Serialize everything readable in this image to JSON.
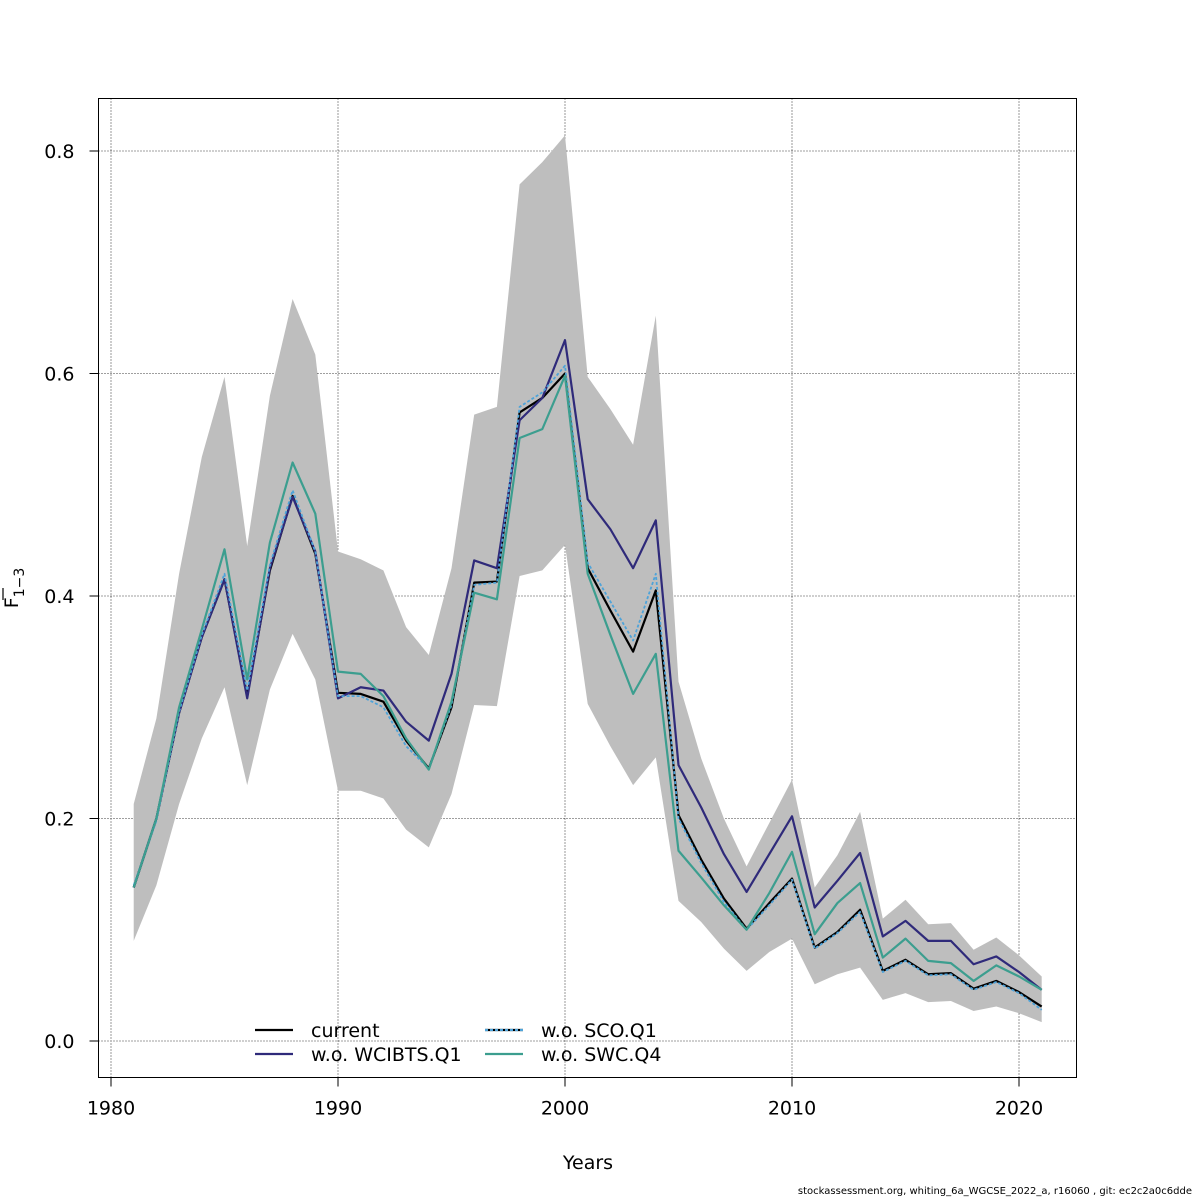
{
  "chart_data": {
    "type": "line",
    "xlabel": "Years",
    "ylabel_main": "F",
    "ylabel_sub": "1−3",
    "xlim": [
      1980,
      2022
    ],
    "ylim": [
      0,
      0.85
    ],
    "xticks": [
      "1980",
      "1990",
      "2000",
      "2010",
      "2020"
    ],
    "yticks": [
      "0.0",
      "0.2",
      "0.4",
      "0.6",
      "0.8"
    ],
    "grid": true,
    "legend_position": "bottom-left",
    "x": [
      1981,
      1982,
      1983,
      1984,
      1985,
      1986,
      1987,
      1988,
      1989,
      1990,
      1991,
      1992,
      1993,
      1994,
      1995,
      1996,
      1997,
      1998,
      1999,
      2000,
      2001,
      2002,
      2003,
      2004,
      2005,
      2006,
      2007,
      2008,
      2009,
      2010,
      2011,
      2012,
      2013,
      2014,
      2015,
      2016,
      2017,
      2018,
      2019,
      2020,
      2021
    ],
    "band": {
      "color": "#bebebe",
      "upper": [
        0.213,
        0.29,
        0.42,
        0.525,
        0.597,
        0.445,
        0.58,
        0.667,
        0.617,
        0.44,
        0.433,
        0.423,
        0.372,
        0.347,
        0.425,
        0.563,
        0.57,
        0.77,
        0.79,
        0.814,
        0.597,
        0.568,
        0.536,
        0.652,
        0.323,
        0.254,
        0.2,
        0.157,
        0.196,
        0.235,
        0.138,
        0.167,
        0.206,
        0.11,
        0.127,
        0.105,
        0.106,
        0.082,
        0.093,
        0.077,
        0.058
      ],
      "lower": [
        0.09,
        0.14,
        0.213,
        0.272,
        0.318,
        0.23,
        0.316,
        0.366,
        0.325,
        0.225,
        0.225,
        0.218,
        0.19,
        0.174,
        0.222,
        0.302,
        0.301,
        0.418,
        0.423,
        0.446,
        0.303,
        0.265,
        0.23,
        0.255,
        0.126,
        0.107,
        0.083,
        0.063,
        0.08,
        0.092,
        0.051,
        0.06,
        0.066,
        0.037,
        0.043,
        0.035,
        0.036,
        0.027,
        0.031,
        0.025,
        0.017
      ]
    },
    "series": [
      {
        "name": "current",
        "color": "#000000",
        "dash": "",
        "values": [
          0.138,
          0.2,
          0.295,
          0.363,
          0.415,
          0.31,
          0.423,
          0.49,
          0.438,
          0.313,
          0.312,
          0.305,
          0.27,
          0.245,
          0.3,
          0.412,
          0.413,
          0.565,
          0.578,
          0.6,
          0.425,
          0.387,
          0.35,
          0.405,
          0.203,
          0.163,
          0.128,
          0.101,
          0.124,
          0.146,
          0.084,
          0.098,
          0.118,
          0.063,
          0.073,
          0.06,
          0.061,
          0.047,
          0.054,
          0.044,
          0.031
        ]
      },
      {
        "name": "w.o. WCIBTS.Q1",
        "color": "#2f2a7a",
        "dash": "",
        "values": [
          0.138,
          0.2,
          0.295,
          0.363,
          0.415,
          0.308,
          0.425,
          0.489,
          0.44,
          0.308,
          0.318,
          0.315,
          0.287,
          0.27,
          0.33,
          0.432,
          0.425,
          0.558,
          0.578,
          0.63,
          0.487,
          0.46,
          0.425,
          0.468,
          0.248,
          0.21,
          0.168,
          0.134,
          0.168,
          0.202,
          0.12,
          0.144,
          0.169,
          0.094,
          0.108,
          0.09,
          0.09,
          0.069,
          0.076,
          0.062,
          0.046
        ]
      },
      {
        "name": "w.o. SCO.Q1",
        "color": "#4ea3d9",
        "dash": "3,2",
        "values": [
          0.14,
          0.198,
          0.296,
          0.365,
          0.42,
          0.315,
          0.428,
          0.495,
          0.44,
          0.31,
          0.31,
          0.3,
          0.265,
          0.245,
          0.302,
          0.41,
          0.412,
          0.57,
          0.583,
          0.607,
          0.43,
          0.395,
          0.36,
          0.42,
          0.2,
          0.16,
          0.125,
          0.1,
          0.122,
          0.145,
          0.083,
          0.097,
          0.116,
          0.062,
          0.072,
          0.059,
          0.06,
          0.046,
          0.053,
          0.043,
          0.028
        ]
      },
      {
        "name": "w.o. SWC.Q4",
        "color": "#3c9e8f",
        "dash": "",
        "values": [
          0.138,
          0.2,
          0.3,
          0.37,
          0.442,
          0.325,
          0.448,
          0.52,
          0.474,
          0.332,
          0.33,
          0.31,
          0.272,
          0.244,
          0.305,
          0.403,
          0.397,
          0.542,
          0.55,
          0.598,
          0.42,
          0.365,
          0.312,
          0.348,
          0.171,
          0.147,
          0.122,
          0.1,
          0.133,
          0.17,
          0.096,
          0.124,
          0.142,
          0.075,
          0.092,
          0.072,
          0.07,
          0.054,
          0.068,
          0.058,
          0.046
        ]
      }
    ]
  },
  "footer": {
    "credit": "stockassessment.org, whiting_6a_WGCSE_2022_a, r16060 , git: ec2c2a0c6dde"
  }
}
